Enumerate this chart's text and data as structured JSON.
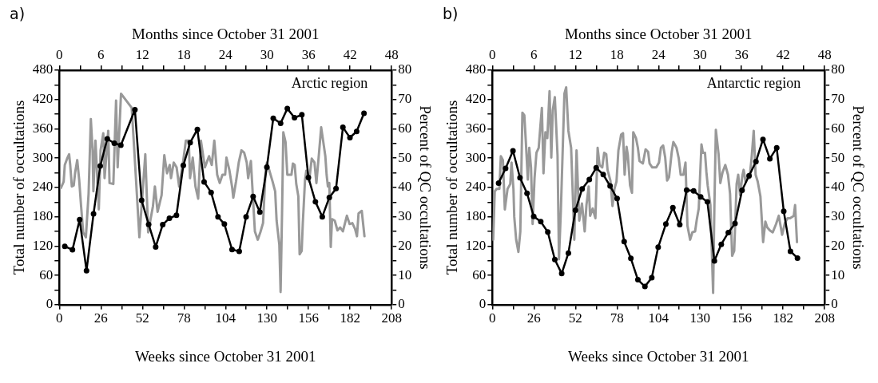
{
  "chart_data": [
    {
      "type": "line",
      "title": "a)",
      "xlabel": "Weeks since October 31 2001",
      "x2label": "Months since October 31 2001",
      "ylabel": "Total number of occultations",
      "y2label": "Percent of QC occultations",
      "annotations": [
        "Arctic region"
      ],
      "xlim": [
        0,
        208
      ],
      "xticks": [
        0,
        {
          "value": 13,
          "label": null
        },
        26,
        {
          "value": 39,
          "label": null
        },
        52,
        {
          "value": 65,
          "label": null
        },
        78,
        {
          "value": 91,
          "label": null
        },
        104,
        {
          "value": 117,
          "label": null
        },
        130,
        {
          "value": 143,
          "label": null
        },
        156,
        {
          "value": 169,
          "label": null
        },
        182,
        {
          "value": 195,
          "label": null
        },
        208
      ],
      "x2lim": [
        0,
        48
      ],
      "x2ticks": [
        0,
        {
          "value": 3,
          "label": null
        },
        6,
        {
          "value": 9,
          "label": null
        },
        12,
        {
          "value": 15,
          "label": null
        },
        18,
        {
          "value": 21,
          "label": null
        },
        24,
        {
          "value": 27,
          "label": null
        },
        30,
        {
          "value": 33,
          "label": null
        },
        36,
        {
          "value": 39,
          "label": null
        },
        42,
        {
          "value": 45,
          "label": null
        },
        48
      ],
      "ylim": [
        0,
        480
      ],
      "yticks": [
        0,
        {
          "value": 30,
          "label": null
        },
        60,
        {
          "value": 90,
          "label": null
        },
        120,
        {
          "value": 150,
          "label": null
        },
        180,
        {
          "value": 210,
          "label": null
        },
        240,
        {
          "value": 270,
          "label": null
        },
        300,
        {
          "value": 330,
          "label": null
        },
        360,
        {
          "value": 390,
          "label": null
        },
        420,
        {
          "value": 450,
          "label": null
        },
        480
      ],
      "y2lim": [
        0,
        80
      ],
      "y2ticks": [
        0,
        {
          "value": 5,
          "label": null
        },
        10,
        {
          "value": 15,
          "label": null
        },
        20,
        {
          "value": 25,
          "label": null
        },
        30,
        {
          "value": 35,
          "label": null
        },
        40,
        {
          "value": 45,
          "label": null
        },
        50,
        {
          "value": 55,
          "label": null
        },
        60,
        {
          "value": 65,
          "label": null
        },
        70,
        {
          "value": 75,
          "label": null
        },
        80
      ],
      "grid": false,
      "legend": false,
      "marker": "circle",
      "line_style": "solid",
      "series": [
        {
          "color": "#999999",
          "marker": "none",
          "x": [
            1,
            2.7,
            3.4,
            5.1,
            6.1,
            6.8,
            7.8,
            9,
            9.9,
            11.2,
            12.4,
            13.6,
            14.9,
            16.6,
            18.3,
            19.7,
            20.8,
            21.3,
            22.6,
            24.7,
            25.8,
            27.5,
            28.3,
            30.6,
            31.4,
            33.8,
            35.5,
            36.5,
            38.6,
            45.3,
            47,
            50.1,
            53.8,
            55.6,
            58.6,
            59.8,
            61.5,
            64,
            65.7,
            67.4,
            69.1,
            69.9,
            71.6,
            73.4,
            75,
            77.6,
            79.2,
            81,
            81.8,
            83.5,
            85.2,
            86.9,
            88.6,
            91.1,
            93.7,
            95.4,
            97,
            98.8,
            100.4,
            102.1,
            103.8,
            104.6,
            106.4,
            108.1,
            108.9,
            110.6,
            112.3,
            114,
            115.7,
            117.3,
            118.2,
            119.9,
            120.8,
            122.4,
            124.2,
            125.8,
            127.5,
            129.2,
            130,
            133.5,
            135.1,
            136,
            137.7,
            138.5,
            139.4,
            140.2,
            141.6,
            142.7,
            145.3,
            146.2,
            147.3,
            148.3,
            149.6,
            150.4,
            151.7,
            152.4,
            153.8,
            154.6,
            156.3,
            158,
            159.7,
            160.9,
            162.3,
            163.9,
            165.1,
            166.5,
            167.3,
            168.1,
            169,
            169.9,
            170.7,
            172.4,
            174.1,
            175.8,
            177.5,
            180,
            181.7,
            183.4,
            185.1,
            186.3,
            187.3,
            189.3,
            191
          ],
          "values": [
            239,
            252,
            286,
            301,
            308,
            286,
            242,
            244,
            271,
            296,
            256,
            202,
            148,
            138,
            227,
            380,
            316,
            232,
            336,
            195,
            316,
            351,
            259,
            356,
            249,
            247,
            418,
            281,
            432,
            403,
            311,
            138,
            308,
            148,
            202,
            242,
            190,
            224,
            306,
            269,
            286,
            259,
            291,
            281,
            242,
            296,
            336,
            336,
            259,
            301,
            242,
            217,
            336,
            281,
            304,
            286,
            336,
            266,
            249,
            266,
            266,
            301,
            276,
            242,
            219,
            252,
            291,
            316,
            311,
            291,
            259,
            294,
            242,
            150,
            133,
            148,
            167,
            281,
            291,
            252,
            232,
            172,
            123,
            26,
            187,
            353,
            333,
            266,
            266,
            289,
            286,
            247,
            222,
            103,
            110,
            167,
            256,
            274,
            252,
            299,
            291,
            249,
            301,
            363,
            336,
            304,
            266,
            242,
            249,
            118,
            175,
            172,
            152,
            158,
            150,
            182,
            165,
            167,
            155,
            140,
            187,
            192,
            140
          ]
        },
        {
          "color": "#000000",
          "axis": "y2",
          "x": [
            3.4,
            8.2,
            12.7,
            17,
            21.4,
            25.6,
            30,
            34.4,
            38.5,
            47.3,
            51.5,
            55.9,
            60.3,
            64.7,
            68.9,
            73.3,
            77.6,
            81.9,
            86.4,
            90.6,
            95,
            99.3,
            103.3,
            108.1,
            112.6,
            116.9,
            121.3,
            125.5,
            129.9,
            133.9,
            138.5,
            142.7,
            147.2,
            151.8,
            155.9,
            160.3,
            164.6,
            169,
            173.2,
            177.5,
            181.9,
            186.1,
            190.7
          ],
          "values": [
            19.9,
            18.7,
            29,
            11.6,
            31,
            47.3,
            56.6,
            55.1,
            54.4,
            66.5,
            35.6,
            27.4,
            19.7,
            27.3,
            29.5,
            30.5,
            47.5,
            55.3,
            59.8,
            41.9,
            38.3,
            30,
            27.5,
            18.8,
            18.2,
            30,
            36.9,
            31.6,
            46.9,
            63.6,
            61.9,
            66.9,
            63.8,
            64.8,
            43.4,
            35.1,
            30,
            36.6,
            39.6,
            60.5,
            57,
            59.1,
            65.3
          ]
        }
      ]
    },
    {
      "type": "line",
      "title": "b)",
      "xlabel": "Weeks since October 31 2001",
      "x2label": "Months since October 31 2001",
      "ylabel": "Total number of occultations",
      "y2label": "Percent of QC occultations",
      "annotations": [
        "Antarctic region"
      ],
      "xlim": [
        0,
        208
      ],
      "xticks": [
        0,
        {
          "value": 13,
          "label": null
        },
        26,
        {
          "value": 39,
          "label": null
        },
        52,
        {
          "value": 65,
          "label": null
        },
        78,
        {
          "value": 91,
          "label": null
        },
        104,
        {
          "value": 117,
          "label": null
        },
        130,
        {
          "value": 143,
          "label": null
        },
        156,
        {
          "value": 169,
          "label": null
        },
        182,
        {
          "value": 195,
          "label": null
        },
        208
      ],
      "x2lim": [
        0,
        48
      ],
      "x2ticks": [
        0,
        {
          "value": 3,
          "label": null
        },
        6,
        {
          "value": 9,
          "label": null
        },
        12,
        {
          "value": 15,
          "label": null
        },
        18,
        {
          "value": 21,
          "label": null
        },
        24,
        {
          "value": 27,
          "label": null
        },
        30,
        {
          "value": 33,
          "label": null
        },
        36,
        {
          "value": 39,
          "label": null
        },
        42,
        {
          "value": 45,
          "label": null
        },
        48
      ],
      "ylim": [
        0,
        480
      ],
      "yticks": [
        0,
        {
          "value": 30,
          "label": null
        },
        60,
        {
          "value": 90,
          "label": null
        },
        120,
        {
          "value": 150,
          "label": null
        },
        180,
        {
          "value": 210,
          "label": null
        },
        240,
        {
          "value": 270,
          "label": null
        },
        300,
        {
          "value": 330,
          "label": null
        },
        360,
        {
          "value": 390,
          "label": null
        },
        420,
        {
          "value": 450,
          "label": null
        },
        480
      ],
      "y2lim": [
        0,
        80
      ],
      "y2ticks": [
        0,
        {
          "value": 5,
          "label": null
        },
        10,
        {
          "value": 15,
          "label": null
        },
        20,
        {
          "value": 25,
          "label": null
        },
        30,
        {
          "value": 35,
          "label": null
        },
        40,
        {
          "value": 45,
          "label": null
        },
        50,
        {
          "value": 55,
          "label": null
        },
        60,
        {
          "value": 65,
          "label": null
        },
        70,
        {
          "value": 75,
          "label": null
        },
        80
      ],
      "grid": false,
      "legend": false,
      "marker": "circle",
      "line_style": "solid",
      "series": [
        {
          "color": "#999999",
          "marker": "none",
          "x": [
            0.5,
            1.5,
            2.7,
            4.4,
            5.3,
            6.6,
            7.8,
            9.5,
            11.2,
            12,
            13.2,
            13.7,
            14.9,
            16.3,
            17.5,
            18.8,
            20,
            21,
            22.2,
            23.1,
            24.2,
            25.2,
            26.4,
            27.6,
            29,
            30,
            31,
            32,
            33.2,
            34.4,
            35.8,
            36.9,
            37.8,
            39.1,
            40.8,
            41.7,
            42.9,
            45.1,
            46.2,
            47.6,
            49.3,
            50.6,
            51.3,
            52.7,
            54.4,
            56.1,
            57.8,
            58.9,
            60.3,
            61.2,
            62.8,
            64.5,
            65.9,
            67.1,
            68.8,
            70,
            71.3,
            72.1,
            73.9,
            75.2,
            76.4,
            77.7,
            78.9,
            80.6,
            81.8,
            82.8,
            84,
            84.8,
            86.2,
            87.4,
            88.2,
            89.9,
            91.1,
            92.1,
            94.2,
            95.9,
            97.5,
            98.4,
            100.1,
            102.6,
            104.3,
            105.5,
            106.9,
            108.2,
            109.4,
            110.6,
            112.3,
            113.3,
            114.5,
            115.3,
            116.7,
            117.9,
            119.6,
            120.9,
            122.1,
            123.8,
            125.2,
            126.9,
            128,
            129.2,
            130,
            130.9,
            131.8,
            133.1,
            134,
            134.8,
            136.5,
            138.2,
            139,
            139.9,
            141.6,
            142.7,
            144.1,
            145.8,
            147.5,
            148.8,
            150.1,
            151.4,
            152.9,
            153.9,
            155.1,
            156.5,
            157.3,
            158.5,
            159.9,
            161,
            162.3,
            163.6,
            164.8,
            166.1,
            167.8,
            169.5,
            170.9,
            172.1,
            173.7,
            175.5,
            177.6,
            179.3,
            181.4,
            183.1,
            184.8,
            186.4,
            188.7,
            189.5,
            190.7
          ],
          "values": [
            133,
            232,
            237,
            237,
            304,
            296,
            195,
            237,
            247,
            291,
            237,
            180,
            133,
            108,
            150,
            393,
            388,
            331,
            256,
            321,
            281,
            165,
            259,
            311,
            321,
            363,
            403,
            269,
            353,
            341,
            437,
            301,
            398,
            425,
            306,
            93,
            195,
            432,
            445,
            356,
            321,
            202,
            133,
            316,
            172,
            207,
            150,
            204,
            242,
            182,
            197,
            177,
            321,
            286,
            281,
            311,
            308,
            276,
            254,
            202,
            237,
            252,
            316,
            348,
            351,
            266,
            323,
            306,
            244,
            229,
            353,
            341,
            321,
            294,
            289,
            318,
            313,
            289,
            281,
            281,
            291,
            321,
            326,
            301,
            254,
            261,
            313,
            333,
            326,
            321,
            299,
            266,
            266,
            291,
            162,
            133,
            148,
            150,
            175,
            197,
            261,
            328,
            311,
            311,
            271,
            244,
            204,
            24,
            204,
            358,
            308,
            249,
            271,
            286,
            266,
            227,
            100,
            110,
            247,
            266,
            224,
            264,
            276,
            252,
            261,
            259,
            301,
            356,
            266,
            252,
            222,
            128,
            170,
            158,
            152,
            148,
            165,
            182,
            143,
            167,
            177,
            177,
            182,
            204,
            128
          ]
        },
        {
          "color": "#000000",
          "axis": "y2",
          "x": [
            3.9,
            8.3,
            12.9,
            17.3,
            21.7,
            25.9,
            30.3,
            34.7,
            39.1,
            43.4,
            47.6,
            52,
            56.2,
            60.7,
            65,
            69.4,
            73.7,
            78.1,
            82.5,
            86.7,
            91.1,
            95.5,
            99.8,
            103.8,
            108.6,
            113,
            117.3,
            121.6,
            126,
            130.4,
            134.6,
            139,
            143.3,
            147.7,
            151.9,
            156.3,
            160.7,
            165,
            169.4,
            173.7,
            178,
            182.4,
            186.6,
            191
          ],
          "values": [
            41.5,
            46.5,
            52.5,
            43.3,
            38,
            30.1,
            28.3,
            24.8,
            15.4,
            10.6,
            17.6,
            32.2,
            39.5,
            42.7,
            46.7,
            44.4,
            40.5,
            36.2,
            21.5,
            15.8,
            8.5,
            6.2,
            9.2,
            19.6,
            27.5,
            33.1,
            27.3,
            39.1,
            38.8,
            36.8,
            35.1,
            14.9,
            20.6,
            24.6,
            27.7,
            39,
            44,
            48.8,
            56.4,
            49.8,
            53.5,
            31.9,
            18.2,
            15.9
          ]
        }
      ]
    }
  ]
}
